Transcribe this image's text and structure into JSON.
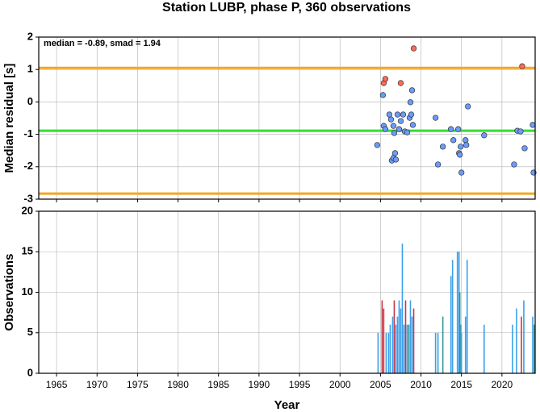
{
  "chart_data": [
    {
      "type": "scatter",
      "title": "Station LUBP, phase P, 360 observations",
      "ylabel": "Median residual [s]",
      "annotation": "median = -0.89, smad = 1.94",
      "xlim": [
        1962.8,
        2024.1
      ],
      "xticks": [
        1965,
        1970,
        1975,
        1980,
        1985,
        1990,
        1995,
        2000,
        2005,
        2010,
        2015,
        2020
      ],
      "ylim": [
        -3,
        2
      ],
      "yticks": [
        -3,
        -2,
        -1,
        0,
        1,
        2
      ],
      "grid": true,
      "hlines": [
        {
          "value": 1.05,
          "color": "#f5a623"
        },
        {
          "value": -0.89,
          "color": "#33dd33"
        },
        {
          "value": -2.83,
          "color": "#f5a623"
        }
      ],
      "series": [
        {
          "color": "#6a9cff",
          "x": [
            2004.6,
            2005.3,
            2005.4,
            2005.6,
            2006.1,
            2006.3,
            2006.6,
            2006.7,
            2006.4,
            2006.6,
            2006.8,
            2006.9,
            2007.1,
            2007.3,
            2007.5,
            2007.8,
            2008.0,
            2008.3,
            2008.6,
            2008.7,
            2008.8,
            2009.0,
            2008.9,
            2011.8,
            2012.1,
            2012.7,
            2013.7,
            2014.0,
            2014.6,
            2014.7,
            2014.8,
            2014.9,
            2015.0,
            2015.5,
            2015.6,
            2015.8,
            2017.8,
            2021.5,
            2021.9,
            2022.3,
            2022.8,
            2023.8,
            2023.9
          ],
          "values": [
            -1.33,
            0.21,
            -0.74,
            -0.84,
            -0.39,
            -0.54,
            -0.74,
            -0.96,
            -1.81,
            -1.73,
            -1.58,
            -1.78,
            -0.39,
            -0.84,
            -0.59,
            -0.39,
            -0.91,
            -0.94,
            -0.49,
            -0.01,
            -0.39,
            -0.71,
            0.36,
            -0.49,
            -1.93,
            -1.38,
            -0.84,
            -1.18,
            -0.84,
            -1.58,
            -1.63,
            -1.38,
            -2.18,
            -1.18,
            -1.33,
            -0.14,
            -1.03,
            -1.93,
            -0.89,
            -0.91,
            -1.43,
            -0.71,
            -2.18
          ]
        },
        {
          "color": "#ff6a5a",
          "x": [
            2005.4,
            2005.6,
            2007.5,
            2009.1,
            2022.5
          ],
          "values": [
            0.58,
            0.71,
            0.58,
            1.65,
            1.1
          ]
        }
      ]
    },
    {
      "type": "bar",
      "xlabel": "Year",
      "ylabel": "Observations",
      "xlim": [
        1962.8,
        2024.1
      ],
      "xticks": [
        1965,
        1970,
        1975,
        1980,
        1985,
        1990,
        1995,
        2000,
        2005,
        2010,
        2015,
        2020
      ],
      "ylim": [
        0,
        20
      ],
      "yticks": [
        0,
        5,
        10,
        15,
        20
      ],
      "grid": true,
      "series": [
        {
          "color": "#3aa0ea",
          "x": [
            2004.7,
            2005.7,
            2006.0,
            2006.2,
            2006.5,
            2006.9,
            2007.1,
            2007.3,
            2007.5,
            2007.7,
            2007.9,
            2008.3,
            2008.7,
            2008.9,
            2011.8,
            2012.1,
            2013.7,
            2013.9,
            2014.5,
            2014.7,
            2014.9,
            2015.0,
            2015.5,
            2015.7,
            2017.8,
            2021.3,
            2021.8,
            2022.7,
            2023.8
          ],
          "values": [
            5,
            5,
            5,
            6,
            7,
            6,
            7,
            9,
            8,
            16,
            6,
            6,
            9,
            7,
            5,
            5,
            12,
            14,
            15,
            15,
            6,
            5,
            7,
            14,
            6,
            6,
            8,
            9,
            7
          ]
        },
        {
          "color": "#cc3344",
          "x": [
            2005.2,
            2005.4,
            2006.7,
            2008.1,
            2009.1,
            2022.4
          ],
          "values": [
            9,
            8,
            9,
            9,
            8,
            7
          ]
        },
        {
          "color": "#339999",
          "x": [
            2008.5,
            2012.7,
            2014.8,
            2024.0
          ],
          "values": [
            6,
            7,
            10,
            6
          ]
        }
      ]
    }
  ]
}
